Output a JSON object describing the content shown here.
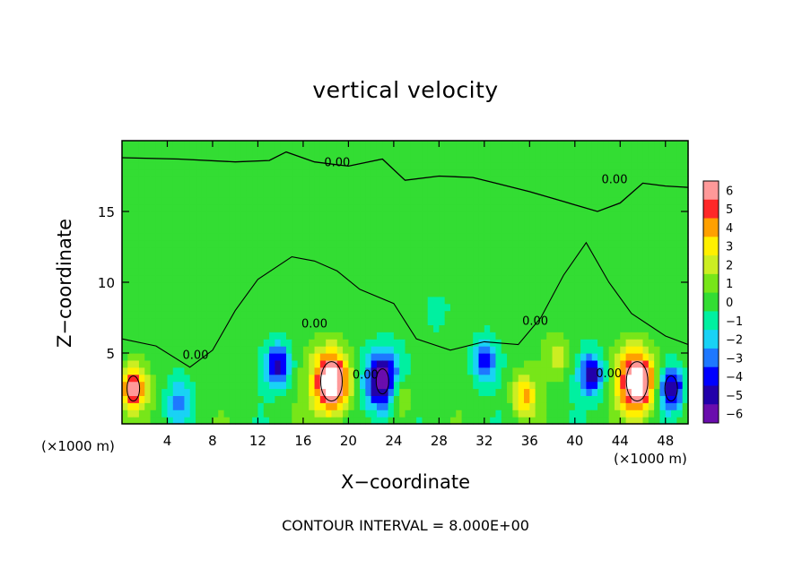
{
  "chart_data": {
    "type": "heatmap",
    "title": "vertical velocity",
    "xlabel": "X−coordinate",
    "ylabel": "Z−coordinate",
    "x_unit_left": "(×1000 m)",
    "x_unit_right": "(×1000 m)",
    "xlim": [
      0,
      50
    ],
    "ylim": [
      0,
      20
    ],
    "xticks": [
      4,
      8,
      12,
      16,
      20,
      24,
      28,
      32,
      36,
      40,
      44,
      48
    ],
    "yticks": [
      5,
      10,
      15
    ],
    "colorbar": {
      "ticks": [
        6,
        5,
        4,
        3,
        2,
        1,
        0,
        -1,
        -2,
        -3,
        -4,
        -5,
        -6
      ],
      "tick_labels": [
        "6",
        "5",
        "4",
        "3",
        "2",
        "1",
        "0",
        "−1",
        "−2",
        "−3",
        "−4",
        "−5",
        "−6"
      ],
      "range": [
        -6,
        6
      ],
      "colors": [
        "#6a0dad",
        "#2200aa",
        "#0000ff",
        "#1e78ff",
        "#19d2f5",
        "#00f0a0",
        "#33dd33",
        "#77e619",
        "#ccee22",
        "#fff000",
        "#ffa000",
        "#ff2828",
        "#ff9999"
      ]
    },
    "contour_label": "0.00",
    "contour_interval_text": "CONTOUR INTERVAL = 8.000E+00",
    "features": [
      {
        "x": 1,
        "z": 2.5,
        "w": 6.0
      },
      {
        "x": 5,
        "z": 1.5,
        "w": -2.5
      },
      {
        "x": 13.8,
        "z": 4.2,
        "w": -5.0
      },
      {
        "x": 18.5,
        "z": 3.0,
        "w": 8.5
      },
      {
        "x": 23.0,
        "z": 3.0,
        "w": -7.0
      },
      {
        "x": 24.5,
        "z": 2.0,
        "w": 3.0
      },
      {
        "x": 32.0,
        "z": 4.5,
        "w": -4.0
      },
      {
        "x": 35.5,
        "z": 2.0,
        "w": 3.5
      },
      {
        "x": 38.5,
        "z": 4.8,
        "w": 2.0
      },
      {
        "x": 41.5,
        "z": 3.5,
        "w": -5.0
      },
      {
        "x": 45.5,
        "z": 3.0,
        "w": 8.5
      },
      {
        "x": 48.5,
        "z": 2.5,
        "w": -6.0
      },
      {
        "x": 28.0,
        "z": 8.0,
        "w": -1.0
      }
    ]
  }
}
